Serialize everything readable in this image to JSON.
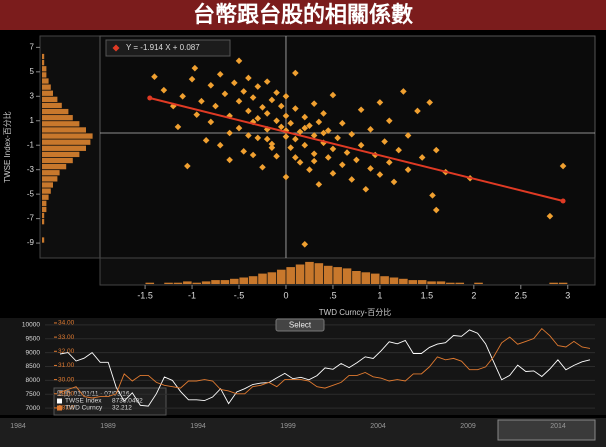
{
  "chart_data": [
    {
      "type": "scatter",
      "title": "台幣跟台股的相關係數",
      "xlabel": "TWD Curncy-百分比",
      "ylabel": "TWSE Index-百分比",
      "color": "#f0a030",
      "x": [
        -1.4,
        -1.3,
        -1.2,
        -1.15,
        -1.1,
        -1.05,
        -1.0,
        -0.97,
        -0.95,
        -0.9,
        -0.85,
        -0.8,
        -0.8,
        -0.75,
        -0.7,
        -0.7,
        -0.65,
        -0.6,
        -0.6,
        -0.55,
        -0.5,
        -0.5,
        -0.5,
        -0.45,
        -0.45,
        -0.4,
        -0.4,
        -0.35,
        -0.35,
        -0.3,
        -0.3,
        -0.3,
        -0.25,
        -0.25,
        -0.2,
        -0.2,
        -0.2,
        -0.15,
        -0.15,
        -0.1,
        -0.1,
        -0.1,
        -0.05,
        -0.05,
        0,
        0,
        0,
        0,
        0.05,
        0.05,
        0.1,
        0.1,
        0.1,
        0.15,
        0.15,
        0.2,
        0.2,
        0.2,
        0.25,
        0.25,
        0.3,
        0.3,
        0.3,
        0.35,
        0.35,
        0.4,
        0.4,
        0.45,
        0.45,
        0.5,
        0.5,
        0.5,
        0.55,
        0.6,
        0.6,
        0.65,
        0.7,
        0.7,
        0.75,
        0.8,
        0.8,
        0.85,
        0.9,
        0.9,
        0.95,
        1.0,
        1.0,
        1.05,
        1.1,
        1.1,
        1.15,
        1.2,
        1.25,
        1.3,
        1.3,
        1.4,
        1.45,
        1.53,
        1.56,
        1.6,
        1.6,
        1.7,
        1.96,
        2.81,
        2.95,
        -0.6,
        -0.4,
        -0.2,
        0,
        0.2,
        0.4,
        -0.15,
        0.1,
        0.3,
        -0.35
      ],
      "y": [
        4.6,
        3.5,
        2.2,
        0.5,
        3.0,
        -2.7,
        4.4,
        5.3,
        1.5,
        2.6,
        -0.6,
        3.9,
        0.9,
        2.2,
        4.8,
        -1.0,
        3.2,
        1.4,
        -2.2,
        4.1,
        5.9,
        2.6,
        0.4,
        3.4,
        -1.5,
        1.8,
        4.5,
        0.9,
        2.9,
        -0.4,
        3.8,
        1.2,
        2.1,
        -2.8,
        0.3,
        4.2,
        1.6,
        2.7,
        -0.9,
        1.0,
        3.3,
        -1.9,
        0.5,
        2.2,
        1.4,
        -0.3,
        3.0,
        -3.6,
        0.8,
        -1.2,
        2.0,
        -0.5,
        4.9,
        0.1,
        -2.4,
        1.3,
        -1.0,
        -9.1,
        0.6,
        -3.0,
        -0.2,
        2.4,
        -1.7,
        0.9,
        -4.2,
        -0.8,
        1.6,
        -2.0,
        0.2,
        -1.3,
        3.1,
        -3.3,
        -0.4,
        -2.6,
        0.8,
        -1.6,
        -0.1,
        -3.8,
        -2.2,
        1.9,
        -1.0,
        -4.6,
        -2.9,
        0.3,
        -1.8,
        2.5,
        -3.4,
        -0.7,
        -2.4,
        1.0,
        -4.0,
        -1.4,
        3.4,
        -0.2,
        -3.0,
        1.8,
        -2.0,
        2.5,
        -5.1,
        -6.3,
        -1.4,
        -3.2,
        -3.7,
        -6.8,
        -2.7,
        0.0,
        -0.2,
        -0.5,
        0.2,
        0.4,
        0,
        -1.2,
        -2.0,
        -2.3,
        -1.8
      ],
      "xlim": [
        -1.98,
        3.29
      ],
      "ylim": [
        -10.22,
        7.93
      ],
      "xticks": [
        -1.5,
        -1,
        {
          "value": -0.5,
          "label": "-.5"
        },
        0,
        {
          "value": 0.5,
          "label": ".5"
        },
        1,
        1.5,
        2,
        2.5,
        3
      ],
      "yticks": [
        7,
        5,
        3,
        1,
        -1,
        -3,
        -5,
        -7,
        -9
      ],
      "fit": {
        "label": "Y = -1.914 X + 0.087",
        "color": "#e03a24",
        "x": [
          -1.45,
          2.95
        ],
        "y": [
          2.86,
          -5.56
        ]
      },
      "y_histogram": {
        "color": "#c8782c",
        "bins": [
          -9,
          -8.5,
          -8,
          -7.5,
          -7,
          -6.5,
          -6,
          -5.5,
          -5,
          -4.5,
          -4,
          -3.5,
          -3,
          -2.5,
          -2,
          -1.5,
          -1,
          -0.5,
          0,
          0.5,
          1,
          1.5,
          2,
          2.5,
          3,
          3.5,
          4,
          4.5,
          5,
          5.5,
          6,
          6.5,
          7
        ],
        "counts": [
          1,
          0,
          0,
          1,
          1,
          2,
          2,
          3,
          4,
          5,
          7,
          8,
          11,
          14,
          17,
          20,
          22,
          23,
          20,
          17,
          14,
          12,
          9,
          7,
          5,
          4,
          3,
          2,
          2,
          1,
          1,
          0
        ]
      },
      "x_histogram": {
        "color": "#c8782c",
        "bins": [
          -1.5,
          -1.4,
          -1.3,
          -1.2,
          -1.1,
          -1.0,
          -0.9,
          -0.8,
          -0.7,
          -0.6,
          -0.5,
          -0.4,
          -0.3,
          -0.2,
          -0.1,
          0,
          0.1,
          0.2,
          0.3,
          0.4,
          0.5,
          0.6,
          0.7,
          0.8,
          0.9,
          1.0,
          1.1,
          1.2,
          1.3,
          1.4,
          1.5,
          1.6,
          1.7,
          1.8,
          1.9,
          2.0,
          2.1,
          2.2,
          2.3,
          2.4,
          2.5,
          2.6,
          2.7,
          2.8,
          2.9,
          3.0
        ],
        "counts": [
          1,
          0,
          1,
          1,
          2,
          1,
          2,
          3,
          3,
          4,
          5,
          6,
          8,
          9,
          11,
          13,
          15,
          17,
          16,
          14,
          13,
          12,
          10,
          9,
          8,
          6,
          5,
          4,
          3,
          3,
          2,
          2,
          1,
          1,
          0,
          1,
          0,
          0,
          0,
          0,
          0,
          0,
          0,
          1,
          1
        ]
      }
    },
    {
      "type": "line",
      "button": "Select",
      "range_label": "區間: 01/01/11 - 07/03/16",
      "ylim": [
        6750,
        10250
      ],
      "yticks": [
        10000,
        9500,
        9000,
        8500,
        8000,
        7500,
        7000
      ],
      "y2lim": [
        27.5,
        34.35
      ],
      "y2ticks": [
        {
          "value": 34,
          "label": "34.00"
        },
        {
          "value": 33,
          "label": "33.00"
        },
        {
          "value": 32,
          "label": "32.00"
        },
        {
          "value": 31,
          "label": "31.00"
        },
        {
          "value": 30,
          "label": "30.00"
        },
        {
          "value": 29,
          "label": "29.00"
        },
        {
          "value": 28,
          "label": "28.00"
        }
      ],
      "series": [
        {
          "name": "TWSE Index",
          "color": "#ffffff",
          "legend_value": "8738.0402",
          "values": [
            8950,
            9000,
            8700,
            8800,
            9000,
            8650,
            8650,
            7750,
            7250,
            7550,
            7100,
            7070,
            7520,
            8120,
            8000,
            7600,
            7300,
            7300,
            7270,
            7400,
            7700,
            7160,
            7580,
            7700,
            7850,
            7900,
            7920,
            8090,
            8250,
            8060,
            8110,
            8020,
            8170,
            8450,
            8400,
            8610,
            8460,
            8640,
            8850,
            8790,
            9070,
            9390,
            9320,
            9440,
            8970,
            8970,
            9190,
            9310,
            9360,
            9620,
            9590,
            9820,
            9700,
            9320,
            8670,
            8020,
            8180,
            8550,
            8320,
            8340,
            8140,
            8410,
            8740,
            8380,
            8540,
            8670,
            8740
          ]
        },
        {
          "name": "TWD Curncy",
          "color": "#e07a30",
          "axis": "y2",
          "legend_value": "32.212",
          "values": [
            29.1,
            29.3,
            29.5,
            28.8,
            28.7,
            28.8,
            28.8,
            29.0,
            30.4,
            29.9,
            30.3,
            30.3,
            29.8,
            29.6,
            29.5,
            29.4,
            29.9,
            29.9,
            30.0,
            29.9,
            29.3,
            29.2,
            29.0,
            29.0,
            29.5,
            29.6,
            29.8,
            29.5,
            30.0,
            30.0,
            30.0,
            29.9,
            29.5,
            29.4,
            29.6,
            29.8,
            30.3,
            30.3,
            30.5,
            30.2,
            30.1,
            29.9,
            30.0,
            29.9,
            30.4,
            30.4,
            30.9,
            31.6,
            31.4,
            31.5,
            31.3,
            30.7,
            30.7,
            30.9,
            31.6,
            32.6,
            33.0,
            32.5,
            32.7,
            32.9,
            33.6,
            33.1,
            32.4,
            32.3,
            32.7,
            32.3,
            32.2
          ]
        }
      ],
      "overview_years": [
        "1984",
        "1989",
        "1994",
        "1999",
        "2004",
        "2009",
        "2014"
      ]
    }
  ]
}
